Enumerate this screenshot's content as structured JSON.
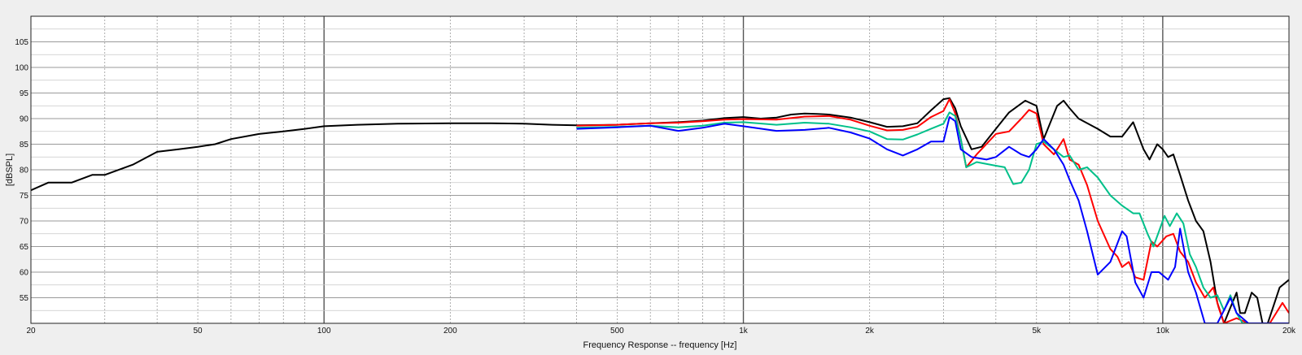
{
  "chart_data": {
    "type": "line",
    "title": "",
    "xlabel": "Frequency Response -- frequency [Hz]",
    "ylabel": "[dBSPL]",
    "x_scale": "log",
    "xlim": [
      20,
      20000
    ],
    "ylim": [
      50,
      110
    ],
    "grid": true,
    "legend": "none",
    "x_major_ticks": [
      {
        "value": 20,
        "label": "20"
      },
      {
        "value": 50,
        "label": "50"
      },
      {
        "value": 100,
        "label": "100"
      },
      {
        "value": 200,
        "label": "200"
      },
      {
        "value": 500,
        "label": "500"
      },
      {
        "value": 1000,
        "label": "1k"
      },
      {
        "value": 2000,
        "label": "2k"
      },
      {
        "value": 5000,
        "label": "5k"
      },
      {
        "value": 10000,
        "label": "10k"
      },
      {
        "value": 20000,
        "label": "20k"
      }
    ],
    "y_ticks": [
      55,
      60,
      65,
      70,
      75,
      80,
      85,
      90,
      95,
      100,
      105
    ],
    "series": [
      {
        "color": "#000000",
        "points": [
          [
            20,
            76
          ],
          [
            22,
            77.5
          ],
          [
            25,
            77.5
          ],
          [
            28,
            79
          ],
          [
            30,
            79
          ],
          [
            35,
            81
          ],
          [
            40,
            83.5
          ],
          [
            45,
            84
          ],
          [
            50,
            84.5
          ],
          [
            55,
            85
          ],
          [
            60,
            86
          ],
          [
            70,
            87
          ],
          [
            80,
            87.5
          ],
          [
            90,
            88
          ],
          [
            100,
            88.5
          ],
          [
            120,
            88.8
          ],
          [
            150,
            89
          ],
          [
            200,
            89.1
          ],
          [
            250,
            89.1
          ],
          [
            300,
            89
          ],
          [
            350,
            88.8
          ],
          [
            400,
            88.7
          ],
          [
            500,
            88.8
          ],
          [
            600,
            89.1
          ],
          [
            700,
            89.3
          ],
          [
            800,
            89.6
          ],
          [
            900,
            90.1
          ],
          [
            1000,
            90.3
          ],
          [
            1100,
            90
          ],
          [
            1200,
            90.2
          ],
          [
            1300,
            90.8
          ],
          [
            1400,
            91
          ],
          [
            1500,
            90.9
          ],
          [
            1600,
            90.8
          ],
          [
            1800,
            90.2
          ],
          [
            2000,
            89.3
          ],
          [
            2200,
            88.4
          ],
          [
            2400,
            88.5
          ],
          [
            2600,
            89.1
          ],
          [
            2800,
            91.6
          ],
          [
            3000,
            93.8
          ],
          [
            3100,
            94
          ],
          [
            3200,
            92
          ],
          [
            3300,
            88.5
          ],
          [
            3500,
            84
          ],
          [
            3700,
            84.5
          ],
          [
            4000,
            88
          ],
          [
            4300,
            91.2
          ],
          [
            4700,
            93.5
          ],
          [
            5000,
            92.5
          ],
          [
            5200,
            86
          ],
          [
            5600,
            92.5
          ],
          [
            5800,
            93.5
          ],
          [
            6000,
            92
          ],
          [
            6300,
            90
          ],
          [
            7000,
            88
          ],
          [
            7500,
            86.5
          ],
          [
            8000,
            86.5
          ],
          [
            8500,
            89.3
          ],
          [
            9000,
            84
          ],
          [
            9300,
            82
          ],
          [
            9700,
            85
          ],
          [
            10000,
            84
          ],
          [
            10300,
            82.5
          ],
          [
            10600,
            83
          ],
          [
            11000,
            79
          ],
          [
            11500,
            74
          ],
          [
            12000,
            70
          ],
          [
            12500,
            68
          ],
          [
            13000,
            62
          ],
          [
            13500,
            54
          ],
          [
            14000,
            50
          ],
          [
            14400,
            52.5
          ],
          [
            15000,
            56
          ],
          [
            15300,
            52
          ],
          [
            15700,
            52
          ],
          [
            16300,
            56
          ],
          [
            16800,
            55
          ],
          [
            17300,
            50
          ],
          [
            17800,
            50
          ],
          [
            19000,
            57
          ],
          [
            20000,
            58.5
          ]
        ]
      },
      {
        "color": "#ff0000",
        "points": [
          [
            400,
            88.6
          ],
          [
            500,
            88.8
          ],
          [
            600,
            89.1
          ],
          [
            700,
            89.2
          ],
          [
            800,
            89.5
          ],
          [
            900,
            89.8
          ],
          [
            1000,
            89.9
          ],
          [
            1200,
            89.8
          ],
          [
            1400,
            90.4
          ],
          [
            1600,
            90.5
          ],
          [
            1800,
            89.8
          ],
          [
            2000,
            88.6
          ],
          [
            2200,
            87.7
          ],
          [
            2400,
            87.8
          ],
          [
            2600,
            88.4
          ],
          [
            2800,
            90.3
          ],
          [
            3000,
            91.5
          ],
          [
            3100,
            93.8
          ],
          [
            3200,
            91
          ],
          [
            3300,
            86
          ],
          [
            3400,
            80.5
          ],
          [
            3600,
            83
          ],
          [
            4000,
            87
          ],
          [
            4300,
            87.5
          ],
          [
            4600,
            90
          ],
          [
            4800,
            91.7
          ],
          [
            5000,
            91
          ],
          [
            5200,
            85
          ],
          [
            5500,
            83
          ],
          [
            5800,
            86
          ],
          [
            6000,
            82
          ],
          [
            6300,
            81
          ],
          [
            6600,
            77
          ],
          [
            7000,
            70
          ],
          [
            7500,
            64.5
          ],
          [
            7800,
            63
          ],
          [
            8000,
            61
          ],
          [
            8300,
            62
          ],
          [
            8600,
            59
          ],
          [
            9000,
            58.5
          ],
          [
            9400,
            66
          ],
          [
            9700,
            65
          ],
          [
            10200,
            67
          ],
          [
            10600,
            67.5
          ],
          [
            11000,
            64
          ],
          [
            11500,
            62
          ],
          [
            12000,
            58
          ],
          [
            12600,
            55
          ],
          [
            13200,
            57
          ],
          [
            13600,
            53
          ],
          [
            14000,
            50
          ],
          [
            15000,
            51
          ],
          [
            16000,
            50
          ],
          [
            17000,
            50
          ],
          [
            18000,
            50
          ],
          [
            19300,
            54
          ],
          [
            20000,
            52
          ]
        ]
      },
      {
        "color": "#00c08a",
        "points": [
          [
            400,
            88.2
          ],
          [
            500,
            88.4
          ],
          [
            600,
            88.6
          ],
          [
            700,
            88.3
          ],
          [
            800,
            88.6
          ],
          [
            900,
            89.2
          ],
          [
            1000,
            89.3
          ],
          [
            1200,
            88.8
          ],
          [
            1400,
            89.2
          ],
          [
            1600,
            89
          ],
          [
            1800,
            88.3
          ],
          [
            2000,
            87.5
          ],
          [
            2200,
            86
          ],
          [
            2400,
            85.9
          ],
          [
            2600,
            86.9
          ],
          [
            2800,
            88
          ],
          [
            3000,
            89
          ],
          [
            3100,
            91.2
          ],
          [
            3200,
            90.5
          ],
          [
            3300,
            86
          ],
          [
            3400,
            80.5
          ],
          [
            3600,
            81.5
          ],
          [
            4000,
            80.8
          ],
          [
            4200,
            80.5
          ],
          [
            4400,
            77.2
          ],
          [
            4600,
            77.5
          ],
          [
            4800,
            80
          ],
          [
            5000,
            85
          ],
          [
            5200,
            85.5
          ],
          [
            5500,
            84
          ],
          [
            5800,
            82.5
          ],
          [
            6000,
            82.8
          ],
          [
            6300,
            80
          ],
          [
            6600,
            80.5
          ],
          [
            7000,
            78.5
          ],
          [
            7500,
            75
          ],
          [
            8000,
            73
          ],
          [
            8500,
            71.5
          ],
          [
            8800,
            71.5
          ],
          [
            9200,
            67.5
          ],
          [
            9500,
            65
          ],
          [
            9800,
            68
          ],
          [
            10100,
            71
          ],
          [
            10400,
            69
          ],
          [
            10800,
            71.5
          ],
          [
            11200,
            69.5
          ],
          [
            11600,
            63.5
          ],
          [
            12000,
            61
          ],
          [
            12500,
            57
          ],
          [
            13000,
            55
          ],
          [
            13500,
            55.5
          ],
          [
            14000,
            52.5
          ],
          [
            14500,
            55.5
          ],
          [
            15000,
            52
          ],
          [
            15500,
            50
          ],
          [
            16500,
            50
          ],
          [
            18000,
            50
          ],
          [
            20000,
            50
          ]
        ]
      },
      {
        "color": "#0000ff",
        "points": [
          [
            400,
            88
          ],
          [
            500,
            88.3
          ],
          [
            600,
            88.6
          ],
          [
            700,
            87.6
          ],
          [
            800,
            88.2
          ],
          [
            900,
            89
          ],
          [
            1000,
            88.5
          ],
          [
            1200,
            87.6
          ],
          [
            1400,
            87.8
          ],
          [
            1600,
            88.2
          ],
          [
            1800,
            87.3
          ],
          [
            2000,
            86.1
          ],
          [
            2200,
            84
          ],
          [
            2400,
            82.8
          ],
          [
            2600,
            84
          ],
          [
            2800,
            85.5
          ],
          [
            3000,
            85.5
          ],
          [
            3100,
            90.3
          ],
          [
            3200,
            89.5
          ],
          [
            3300,
            84
          ],
          [
            3500,
            82.5
          ],
          [
            3800,
            82
          ],
          [
            4000,
            82.5
          ],
          [
            4300,
            84.5
          ],
          [
            4600,
            83
          ],
          [
            4800,
            82.5
          ],
          [
            5000,
            84
          ],
          [
            5200,
            86
          ],
          [
            5500,
            84
          ],
          [
            5800,
            81
          ],
          [
            6000,
            78
          ],
          [
            6300,
            74
          ],
          [
            6600,
            68
          ],
          [
            7000,
            59.5
          ],
          [
            7500,
            62
          ],
          [
            8000,
            68
          ],
          [
            8200,
            67
          ],
          [
            8600,
            58
          ],
          [
            9000,
            55
          ],
          [
            9400,
            60
          ],
          [
            9800,
            60
          ],
          [
            10300,
            58.5
          ],
          [
            10700,
            61
          ],
          [
            11000,
            68.5
          ],
          [
            11500,
            60
          ],
          [
            12000,
            56
          ],
          [
            12600,
            50
          ],
          [
            13500,
            50
          ],
          [
            14500,
            55
          ],
          [
            15000,
            52
          ],
          [
            16000,
            50
          ],
          [
            18000,
            50
          ],
          [
            20000,
            50
          ]
        ]
      }
    ]
  }
}
